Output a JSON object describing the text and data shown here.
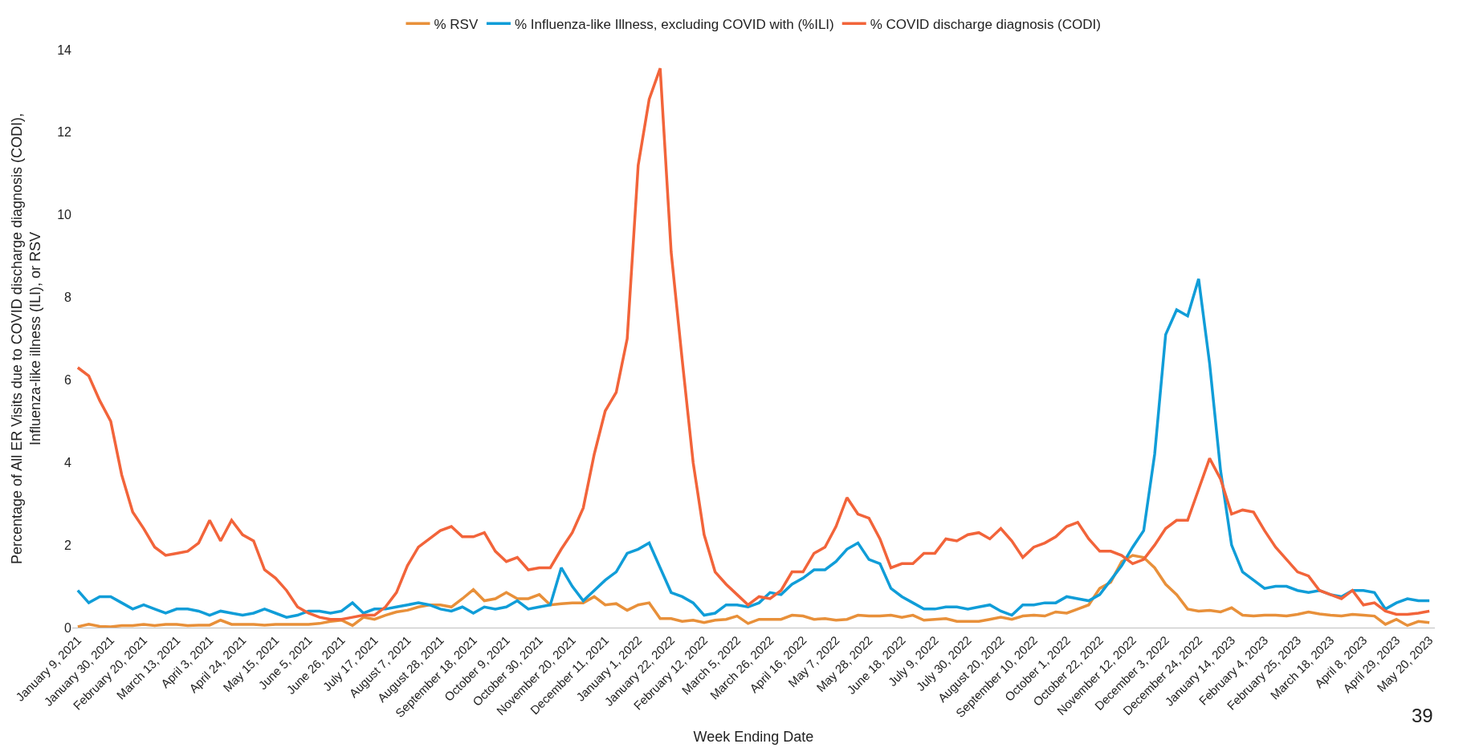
{
  "chart_data": {
    "type": "line",
    "xlabel": "Week Ending Date",
    "ylabel": "Percentage of All ER Visits due to COVID discharge diagnosis (CODI),\nInfluenza-like illness (ILI), or RSV",
    "categories": [
      "January 9, 2021",
      null,
      null,
      "January 30, 2021",
      null,
      null,
      "February 20, 2021",
      null,
      null,
      "March 13, 2021",
      null,
      null,
      "April 3, 2021",
      null,
      null,
      "April 24, 2021",
      null,
      null,
      "May 15, 2021",
      null,
      null,
      "June 5, 2021",
      null,
      null,
      "June 26, 2021",
      null,
      null,
      "July 17, 2021",
      null,
      null,
      "August 7, 2021",
      null,
      null,
      "August 28, 2021",
      null,
      null,
      "September 18, 2021",
      null,
      null,
      "October 9, 2021",
      null,
      null,
      "October 30, 2021",
      null,
      null,
      "November 20, 2021",
      null,
      null,
      "December 11, 2021",
      null,
      null,
      "January 1, 2022",
      null,
      null,
      "January 22, 2022",
      null,
      null,
      "February 12, 2022",
      null,
      null,
      "March 5, 2022",
      null,
      null,
      "March 26, 2022",
      null,
      null,
      "April 16, 2022",
      null,
      null,
      "May 7, 2022",
      null,
      null,
      "May 28, 2022",
      null,
      null,
      "June 18, 2022",
      null,
      null,
      "July 9, 2022",
      null,
      null,
      "July 30, 2022",
      null,
      null,
      "August 20, 2022",
      null,
      null,
      "September 10, 2022",
      null,
      null,
      "October 1, 2022",
      null,
      null,
      "October 22, 2022",
      null,
      null,
      "November 12, 2022",
      null,
      null,
      "December 3, 2022",
      null,
      null,
      "December 24, 2022",
      null,
      null,
      "January 14, 2023",
      null,
      null,
      "February 4, 2023",
      null,
      null,
      "February 25, 2023",
      null,
      null,
      "March 18, 2023",
      null,
      null,
      "April 8, 2023",
      null,
      null,
      "April 29, 2023",
      null,
      null,
      "May 20, 2023"
    ],
    "series": [
      {
        "name": "% RSV",
        "color": "#e8903a",
        "values": [
          0.02,
          0.08,
          0.03,
          0.02,
          0.05,
          0.05,
          0.08,
          0.05,
          0.08,
          0.08,
          0.05,
          0.06,
          0.06,
          0.18,
          0.08,
          0.08,
          0.08,
          0.06,
          0.08,
          0.08,
          0.08,
          0.08,
          0.1,
          0.15,
          0.18,
          0.05,
          0.25,
          0.2,
          0.3,
          0.38,
          0.42,
          0.5,
          0.55,
          0.55,
          0.5,
          0.7,
          0.92,
          0.65,
          0.7,
          0.85,
          0.7,
          0.7,
          0.8,
          0.55,
          0.58,
          0.6,
          0.6,
          0.75,
          0.55,
          0.58,
          0.42,
          0.55,
          0.6,
          0.22,
          0.22,
          0.15,
          0.18,
          0.12,
          0.18,
          0.2,
          0.28,
          0.1,
          0.2,
          0.2,
          0.2,
          0.3,
          0.28,
          0.2,
          0.22,
          0.18,
          0.2,
          0.3,
          0.28,
          0.28,
          0.3,
          0.25,
          0.3,
          0.18,
          0.2,
          0.22,
          0.15,
          0.15,
          0.15,
          0.2,
          0.25,
          0.2,
          0.28,
          0.3,
          0.28,
          0.38,
          0.35,
          0.45,
          0.55,
          0.95,
          1.1,
          1.6,
          1.75,
          1.7,
          1.45,
          1.05,
          0.8,
          0.45,
          0.4,
          0.42,
          0.38,
          0.48,
          0.3,
          0.28,
          0.3,
          0.3,
          0.28,
          0.32,
          0.38,
          0.33,
          0.3,
          0.28,
          0.32,
          0.3,
          0.28,
          0.08,
          0.2,
          0.05,
          0.15,
          0.12
        ]
      },
      {
        "name": "% Influenza-like Illness, excluding COVID with (%ILI)",
        "color": "#109dd8",
        "values": [
          0.9,
          0.6,
          0.75,
          0.75,
          0.6,
          0.45,
          0.55,
          0.45,
          0.35,
          0.45,
          0.45,
          0.4,
          0.3,
          0.4,
          0.35,
          0.3,
          0.35,
          0.45,
          0.35,
          0.25,
          0.3,
          0.4,
          0.4,
          0.35,
          0.4,
          0.6,
          0.35,
          0.45,
          0.45,
          0.5,
          0.55,
          0.6,
          0.55,
          0.45,
          0.4,
          0.5,
          0.35,
          0.5,
          0.45,
          0.5,
          0.65,
          0.45,
          0.5,
          0.55,
          1.45,
          1.0,
          0.65,
          0.9,
          1.15,
          1.35,
          1.8,
          1.9,
          2.05,
          1.45,
          0.85,
          0.75,
          0.6,
          0.3,
          0.35,
          0.55,
          0.55,
          0.5,
          0.6,
          0.85,
          0.8,
          1.05,
          1.2,
          1.4,
          1.4,
          1.6,
          1.9,
          2.05,
          1.65,
          1.55,
          0.95,
          0.75,
          0.6,
          0.45,
          0.45,
          0.5,
          0.5,
          0.45,
          0.5,
          0.55,
          0.4,
          0.3,
          0.55,
          0.55,
          0.6,
          0.6,
          0.75,
          0.7,
          0.65,
          0.8,
          1.15,
          1.5,
          1.95,
          2.35,
          4.2,
          7.1,
          7.7,
          7.55,
          8.45,
          6.4,
          3.8,
          2.0,
          1.35,
          1.15,
          0.95,
          1.0,
          1.0,
          0.9,
          0.85,
          0.9,
          0.8,
          0.75,
          0.9,
          0.9,
          0.85,
          0.45,
          0.6,
          0.7,
          0.65,
          0.65
        ]
      },
      {
        "name": "% COVID discharge diagnosis (CODI)",
        "color": "#f2643a",
        "values": [
          6.3,
          6.1,
          5.5,
          5.0,
          3.7,
          2.8,
          2.4,
          1.95,
          1.75,
          1.8,
          1.85,
          2.05,
          2.6,
          2.1,
          2.6,
          2.25,
          2.1,
          1.4,
          1.2,
          0.9,
          0.5,
          0.35,
          0.25,
          0.2,
          0.2,
          0.25,
          0.3,
          0.3,
          0.5,
          0.85,
          1.5,
          1.95,
          2.15,
          2.35,
          2.45,
          2.2,
          2.2,
          2.3,
          1.85,
          1.6,
          1.7,
          1.4,
          1.45,
          1.45,
          1.9,
          2.3,
          2.9,
          4.2,
          5.25,
          5.7,
          7.0,
          11.2,
          12.8,
          13.55,
          9.1,
          6.5,
          4.0,
          2.25,
          1.35,
          1.05,
          0.8,
          0.55,
          0.75,
          0.7,
          0.9,
          1.35,
          1.35,
          1.8,
          1.95,
          2.45,
          3.15,
          2.75,
          2.65,
          2.15,
          1.45,
          1.55,
          1.55,
          1.8,
          1.8,
          2.15,
          2.1,
          2.25,
          2.3,
          2.15,
          2.4,
          2.1,
          1.7,
          1.95,
          2.05,
          2.2,
          2.45,
          2.55,
          2.15,
          1.85,
          1.85,
          1.75,
          1.55,
          1.65,
          2.0,
          2.4,
          2.6,
          2.6,
          3.35,
          4.1,
          3.6,
          2.75,
          2.85,
          2.8,
          2.35,
          1.95,
          1.65,
          1.35,
          1.25,
          0.9,
          0.8,
          0.7,
          0.9,
          0.55,
          0.6,
          0.4,
          0.32,
          0.32,
          0.35,
          0.4
        ]
      }
    ],
    "ylim": [
      0,
      14
    ],
    "yticks": [
      0,
      2,
      4,
      6,
      8,
      10,
      12,
      14
    ],
    "grid": false,
    "legend": "top",
    "marker": "none",
    "line_style": "solid",
    "annotations": [
      "39"
    ]
  }
}
